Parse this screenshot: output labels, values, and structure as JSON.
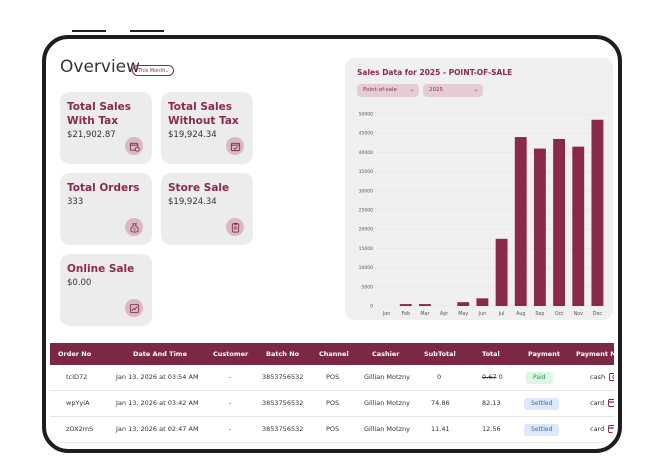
{
  "overview": {
    "title": "Overview",
    "period": "This Month"
  },
  "cards": [
    {
      "title_line1": "Total Sales",
      "title_line2": "With Tax",
      "value": "$21,902.87",
      "icon": "calendar-clock-icon"
    },
    {
      "title_line1": "Total Sales",
      "title_line2": "Without Tax",
      "value": "$19,924.34",
      "icon": "calendar-check-icon"
    },
    {
      "title_line1": "Total Orders",
      "title_line2": "",
      "value": "333",
      "icon": "money-bag-icon"
    },
    {
      "title_line1": "Store Sale",
      "title_line2": "",
      "value": "$19,924.34",
      "icon": "clipboard-icon"
    },
    {
      "title_line1": "Online Sale",
      "title_line2": "",
      "value": "$0.00",
      "icon": "chart-trend-icon"
    }
  ],
  "sales_panel": {
    "title": "Sales Data for 2025 - POINT-OF-SALE",
    "channel_select": "Point-of-sale",
    "year_select": "2025"
  },
  "chart_data": {
    "type": "bar",
    "categories": [
      "Jan",
      "Feb",
      "Mar",
      "Apr",
      "May",
      "Jun",
      "Jul",
      "Aug",
      "Sep",
      "Oct",
      "Nov",
      "Dec"
    ],
    "values": [
      0,
      500,
      500,
      0,
      1000,
      2000,
      17500,
      44000,
      41000,
      43500,
      41500,
      48500
    ],
    "ylim": [
      0,
      50000
    ],
    "yticks": [
      "0",
      "5000",
      "10000",
      "15000",
      "20000",
      "25000",
      "30000",
      "35000",
      "40000",
      "45000",
      "50000"
    ],
    "color": "#8a2a4a"
  },
  "table": {
    "headers": [
      "Order No",
      "Date And Time",
      "Customer",
      "Batch No",
      "Channel",
      "Cashier",
      "SubTotal",
      "Total",
      "Payment",
      "Payment Metho"
    ],
    "rows": [
      {
        "order": "tcID72",
        "date": "Jan 13, 2026 at 03:54 AM",
        "customer": "-",
        "batch": "3853756532",
        "channel": "POS",
        "cashier": "Gillian Motzny",
        "subtotal": "0",
        "total_struck": "0.67",
        "total": "0",
        "payment": "Paid",
        "method": "cash"
      },
      {
        "order": "wpYyiA",
        "date": "Jan 13, 2026 at 03:42 AM",
        "customer": "-",
        "batch": "3853756532",
        "channel": "POS",
        "cashier": "Gillian Motzny",
        "subtotal": "74.86",
        "total_struck": "",
        "total": "82.13",
        "payment": "Settled",
        "method": "card"
      },
      {
        "order": "zOX2mS",
        "date": "Jan 13, 2026 at 02:47 AM",
        "customer": "-",
        "batch": "3853756532",
        "channel": "POS",
        "cashier": "Gillian Motzny",
        "subtotal": "11.41",
        "total_struck": "",
        "total": "12.56",
        "payment": "Settled",
        "method": "card"
      }
    ]
  },
  "colors": {
    "brand": "#8a2a4a",
    "header": "#7c2844",
    "paid_bg": "#dff5e4",
    "paid_fg": "#2e8b4a",
    "settled_bg": "#dde9fb",
    "settled_fg": "#3568c4"
  }
}
